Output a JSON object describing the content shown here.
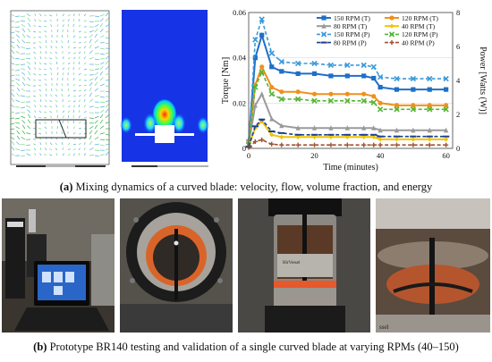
{
  "caption_a": {
    "label": "(a)",
    "text": " Mixing dynamics of a curved blade: velocity, flow, volume fraction, and energy"
  },
  "caption_b": {
    "label": "(b)",
    "text": " Prototype BR140 testing and validation of a single curved blade at varying RPMs (40–150)"
  },
  "photo_texts": {
    "beaker_brand": "HirVessel",
    "beaker_brand_2": "ssel"
  },
  "chart_data": {
    "type": "line",
    "xlabel": "Time (minutes)",
    "ylabel": "Torque  [Nm]",
    "y2label": "Power  [Watts (W)]",
    "x_ticks": [
      "0",
      "20",
      "40",
      "60"
    ],
    "y_ticks": [
      "0",
      "0.02",
      "0.04",
      "0.06"
    ],
    "y2_ticks": [
      "0",
      "2",
      "4",
      "6",
      "8"
    ],
    "xlim": [
      0,
      62
    ],
    "ylim": [
      0,
      0.06
    ],
    "y2lim": [
      0,
      8
    ],
    "x": [
      0,
      2,
      4,
      7,
      10,
      15,
      20,
      25,
      30,
      35,
      38,
      40,
      45,
      50,
      55,
      60
    ],
    "series": [
      {
        "name": "150 RPM (T)",
        "color": "#1f6fc6",
        "dash": "solid",
        "marker": "square",
        "axis": "torque",
        "values": [
          0.003,
          0.04,
          0.05,
          0.036,
          0.034,
          0.033,
          0.033,
          0.032,
          0.032,
          0.032,
          0.031,
          0.027,
          0.026,
          0.026,
          0.026,
          0.026
        ]
      },
      {
        "name": "120 RPM (T)",
        "color": "#f0901e",
        "dash": "solid",
        "marker": "circle",
        "axis": "torque",
        "values": [
          0.003,
          0.028,
          0.036,
          0.027,
          0.025,
          0.025,
          0.024,
          0.024,
          0.024,
          0.024,
          0.023,
          0.02,
          0.019,
          0.019,
          0.019,
          0.019
        ]
      },
      {
        "name": "80 RPM (T)",
        "color": "#9a9a9a",
        "dash": "solid",
        "marker": "triangle",
        "axis": "torque",
        "values": [
          0.002,
          0.019,
          0.024,
          0.013,
          0.01,
          0.009,
          0.009,
          0.009,
          0.009,
          0.009,
          0.009,
          0.008,
          0.008,
          0.008,
          0.008,
          0.008
        ]
      },
      {
        "name": "40 RPM (T)",
        "color": "#f2c200",
        "dash": "solid",
        "marker": "diamond",
        "axis": "torque",
        "values": [
          0.001,
          0.009,
          0.012,
          0.006,
          0.005,
          0.005,
          0.005,
          0.005,
          0.005,
          0.005,
          0.005,
          0.004,
          0.004,
          0.004,
          0.004,
          0.004
        ]
      },
      {
        "name": "150 RPM (P)",
        "color": "#3a9ad9",
        "dash": "dashed",
        "marker": "x",
        "axis": "power",
        "values": [
          0.2,
          6.4,
          7.6,
          5.6,
          5.1,
          5.0,
          5.0,
          4.9,
          4.9,
          4.9,
          4.8,
          4.2,
          4.1,
          4.1,
          4.1,
          4.1
        ]
      },
      {
        "name": "120 RPM (P)",
        "color": "#55b534",
        "dash": "dashed",
        "marker": "x",
        "axis": "power",
        "values": [
          0.2,
          3.6,
          4.5,
          3.2,
          2.9,
          2.9,
          2.8,
          2.8,
          2.8,
          2.8,
          2.7,
          2.3,
          2.3,
          2.3,
          2.3,
          2.3
        ]
      },
      {
        "name": "80 RPM (P)",
        "color": "#1b3f8f",
        "dash": "dashed",
        "marker": "dash",
        "axis": "power",
        "values": [
          0.1,
          1.3,
          1.7,
          1.0,
          0.9,
          0.8,
          0.8,
          0.8,
          0.8,
          0.8,
          0.8,
          0.7,
          0.7,
          0.7,
          0.7,
          0.7
        ]
      },
      {
        "name": "40 RPM (P)",
        "color": "#a0522d",
        "dash": "dashed",
        "marker": "plus",
        "axis": "power",
        "values": [
          0.05,
          0.4,
          0.5,
          0.25,
          0.2,
          0.2,
          0.2,
          0.2,
          0.2,
          0.2,
          0.2,
          0.2,
          0.2,
          0.2,
          0.2,
          0.2
        ]
      }
    ]
  }
}
